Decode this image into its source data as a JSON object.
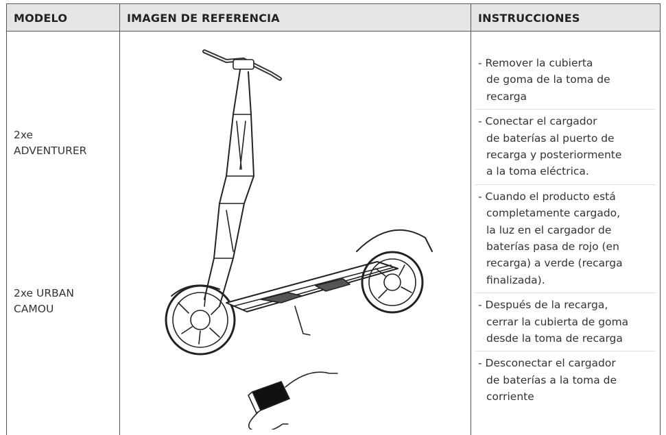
{
  "table": {
    "headers": [
      "MODELO",
      "IMAGEN DE REFERENCIA",
      "INSTRUCCIONES"
    ],
    "models": [
      [
        "2xe",
        "ADVENTURER"
      ],
      [
        "2xe URBAN",
        "CAMOU"
      ]
    ],
    "instructions": [
      [
        "- Remover la cubierta",
        "de goma de la toma de",
        "recarga"
      ],
      [
        "- Conectar el cargador",
        "de baterías al puerto de",
        "recarga y posteriormente",
        "a la toma eléctrica."
      ],
      [
        "- Cuando el producto está",
        "completamente cargado,",
        "la luz en el cargador de",
        "baterías pasa de rojo (en",
        "recarga) a verde (recarga",
        "finalizada)."
      ],
      [
        "- Después de la recarga,",
        "cerrar la cubierta de goma",
        "desde la toma de recarga"
      ],
      [
        "- Desconectar el cargador",
        "de baterías a la toma de",
        "corriente"
      ]
    ]
  }
}
